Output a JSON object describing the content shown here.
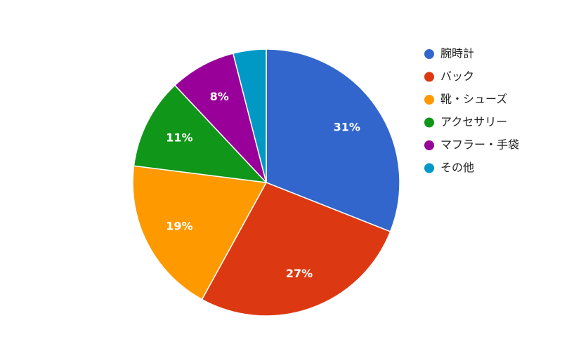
{
  "chart_data": {
    "type": "pie",
    "categories": [
      "腕時計",
      "バック",
      "靴・シューズ",
      "アクセサリー",
      "マフラー・手袋",
      "その他"
    ],
    "values": [
      31,
      27,
      19,
      11,
      8,
      4
    ],
    "value_labels": [
      "31%",
      "27%",
      "19%",
      "11%",
      "8%",
      null
    ],
    "colors": [
      "#3366cc",
      "#dc3912",
      "#ff9900",
      "#109618",
      "#990099",
      "#0099c6"
    ],
    "legend": "right"
  }
}
